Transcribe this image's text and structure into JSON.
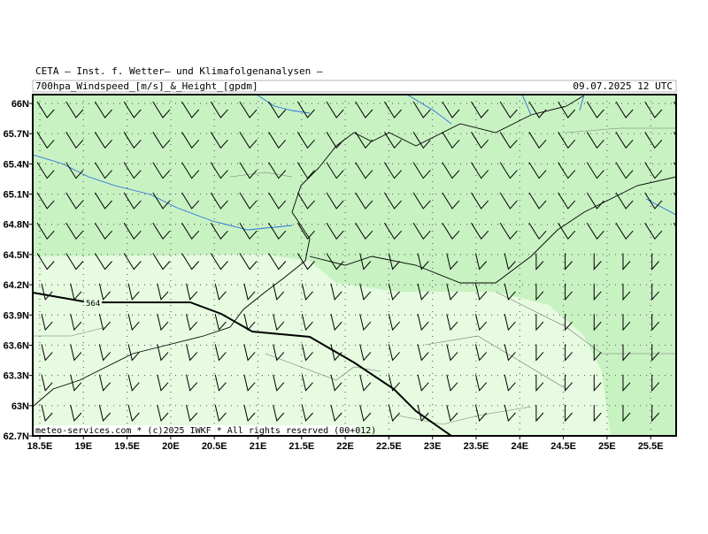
{
  "header": {
    "title": "CETA — Inst. f. Wetter— und Klimafolgenanalysen —",
    "subtitle": "700hpa_Windspeed_[m/s]_&_Height_[gpdm]",
    "valid_time": "09.07.2025 12 UTC"
  },
  "map": {
    "lat_labels": [
      "66N",
      "65.7N",
      "65.4N",
      "65.1N",
      "64.8N",
      "64.5N",
      "64.2N",
      "63.9N",
      "63.6N",
      "63.3N",
      "63N",
      "62.7N"
    ],
    "lon_labels": [
      "18.5E",
      "19E",
      "19.5E",
      "20E",
      "20.5E",
      "21E",
      "21.5E",
      "22E",
      "22.5E",
      "23E",
      "23.5E",
      "24E",
      "24.5E",
      "25E",
      "25.5E"
    ],
    "contour_labels": [
      "564"
    ],
    "footer": "meteo-services.com * (c)2025 IWKF * All rights reserved (00+012)"
  }
}
